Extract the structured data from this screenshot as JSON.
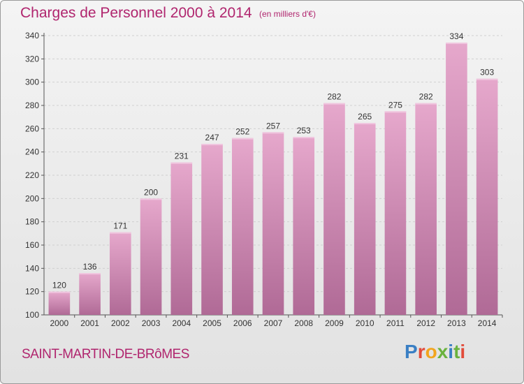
{
  "header": {
    "title": "Charges de Personnel 2000 à 2014",
    "subtitle": "(en milliers d'€)"
  },
  "footer": {
    "commune": "SAINT-MARTIN-DE-BRôMES",
    "logo_text": "Proxiti"
  },
  "colors": {
    "bar_top": "#e6a8cc",
    "bar_bottom": "#b06a96",
    "title": "#b0256e",
    "logo_letters": [
      "#3a7fc4",
      "#e24b3a",
      "#f2a51e",
      "#6ab23e",
      "#3a7fc4",
      "#6ab23e",
      "#e24b3a"
    ]
  },
  "chart_data": {
    "type": "bar",
    "title": "Charges de Personnel 2000 à 2014",
    "subtitle": "(en milliers d'€)",
    "categories": [
      "2000",
      "2001",
      "2002",
      "2003",
      "2004",
      "2005",
      "2006",
      "2007",
      "2008",
      "2009",
      "2010",
      "2011",
      "2012",
      "2013",
      "2014"
    ],
    "values": [
      120,
      136,
      171,
      200,
      231,
      247,
      252,
      257,
      253,
      282,
      265,
      275,
      282,
      334,
      303
    ],
    "ylim": [
      100,
      340
    ],
    "yticks": [
      100,
      120,
      140,
      160,
      180,
      200,
      220,
      240,
      260,
      280,
      300,
      320,
      340
    ],
    "grid": true,
    "data_labels": true
  }
}
